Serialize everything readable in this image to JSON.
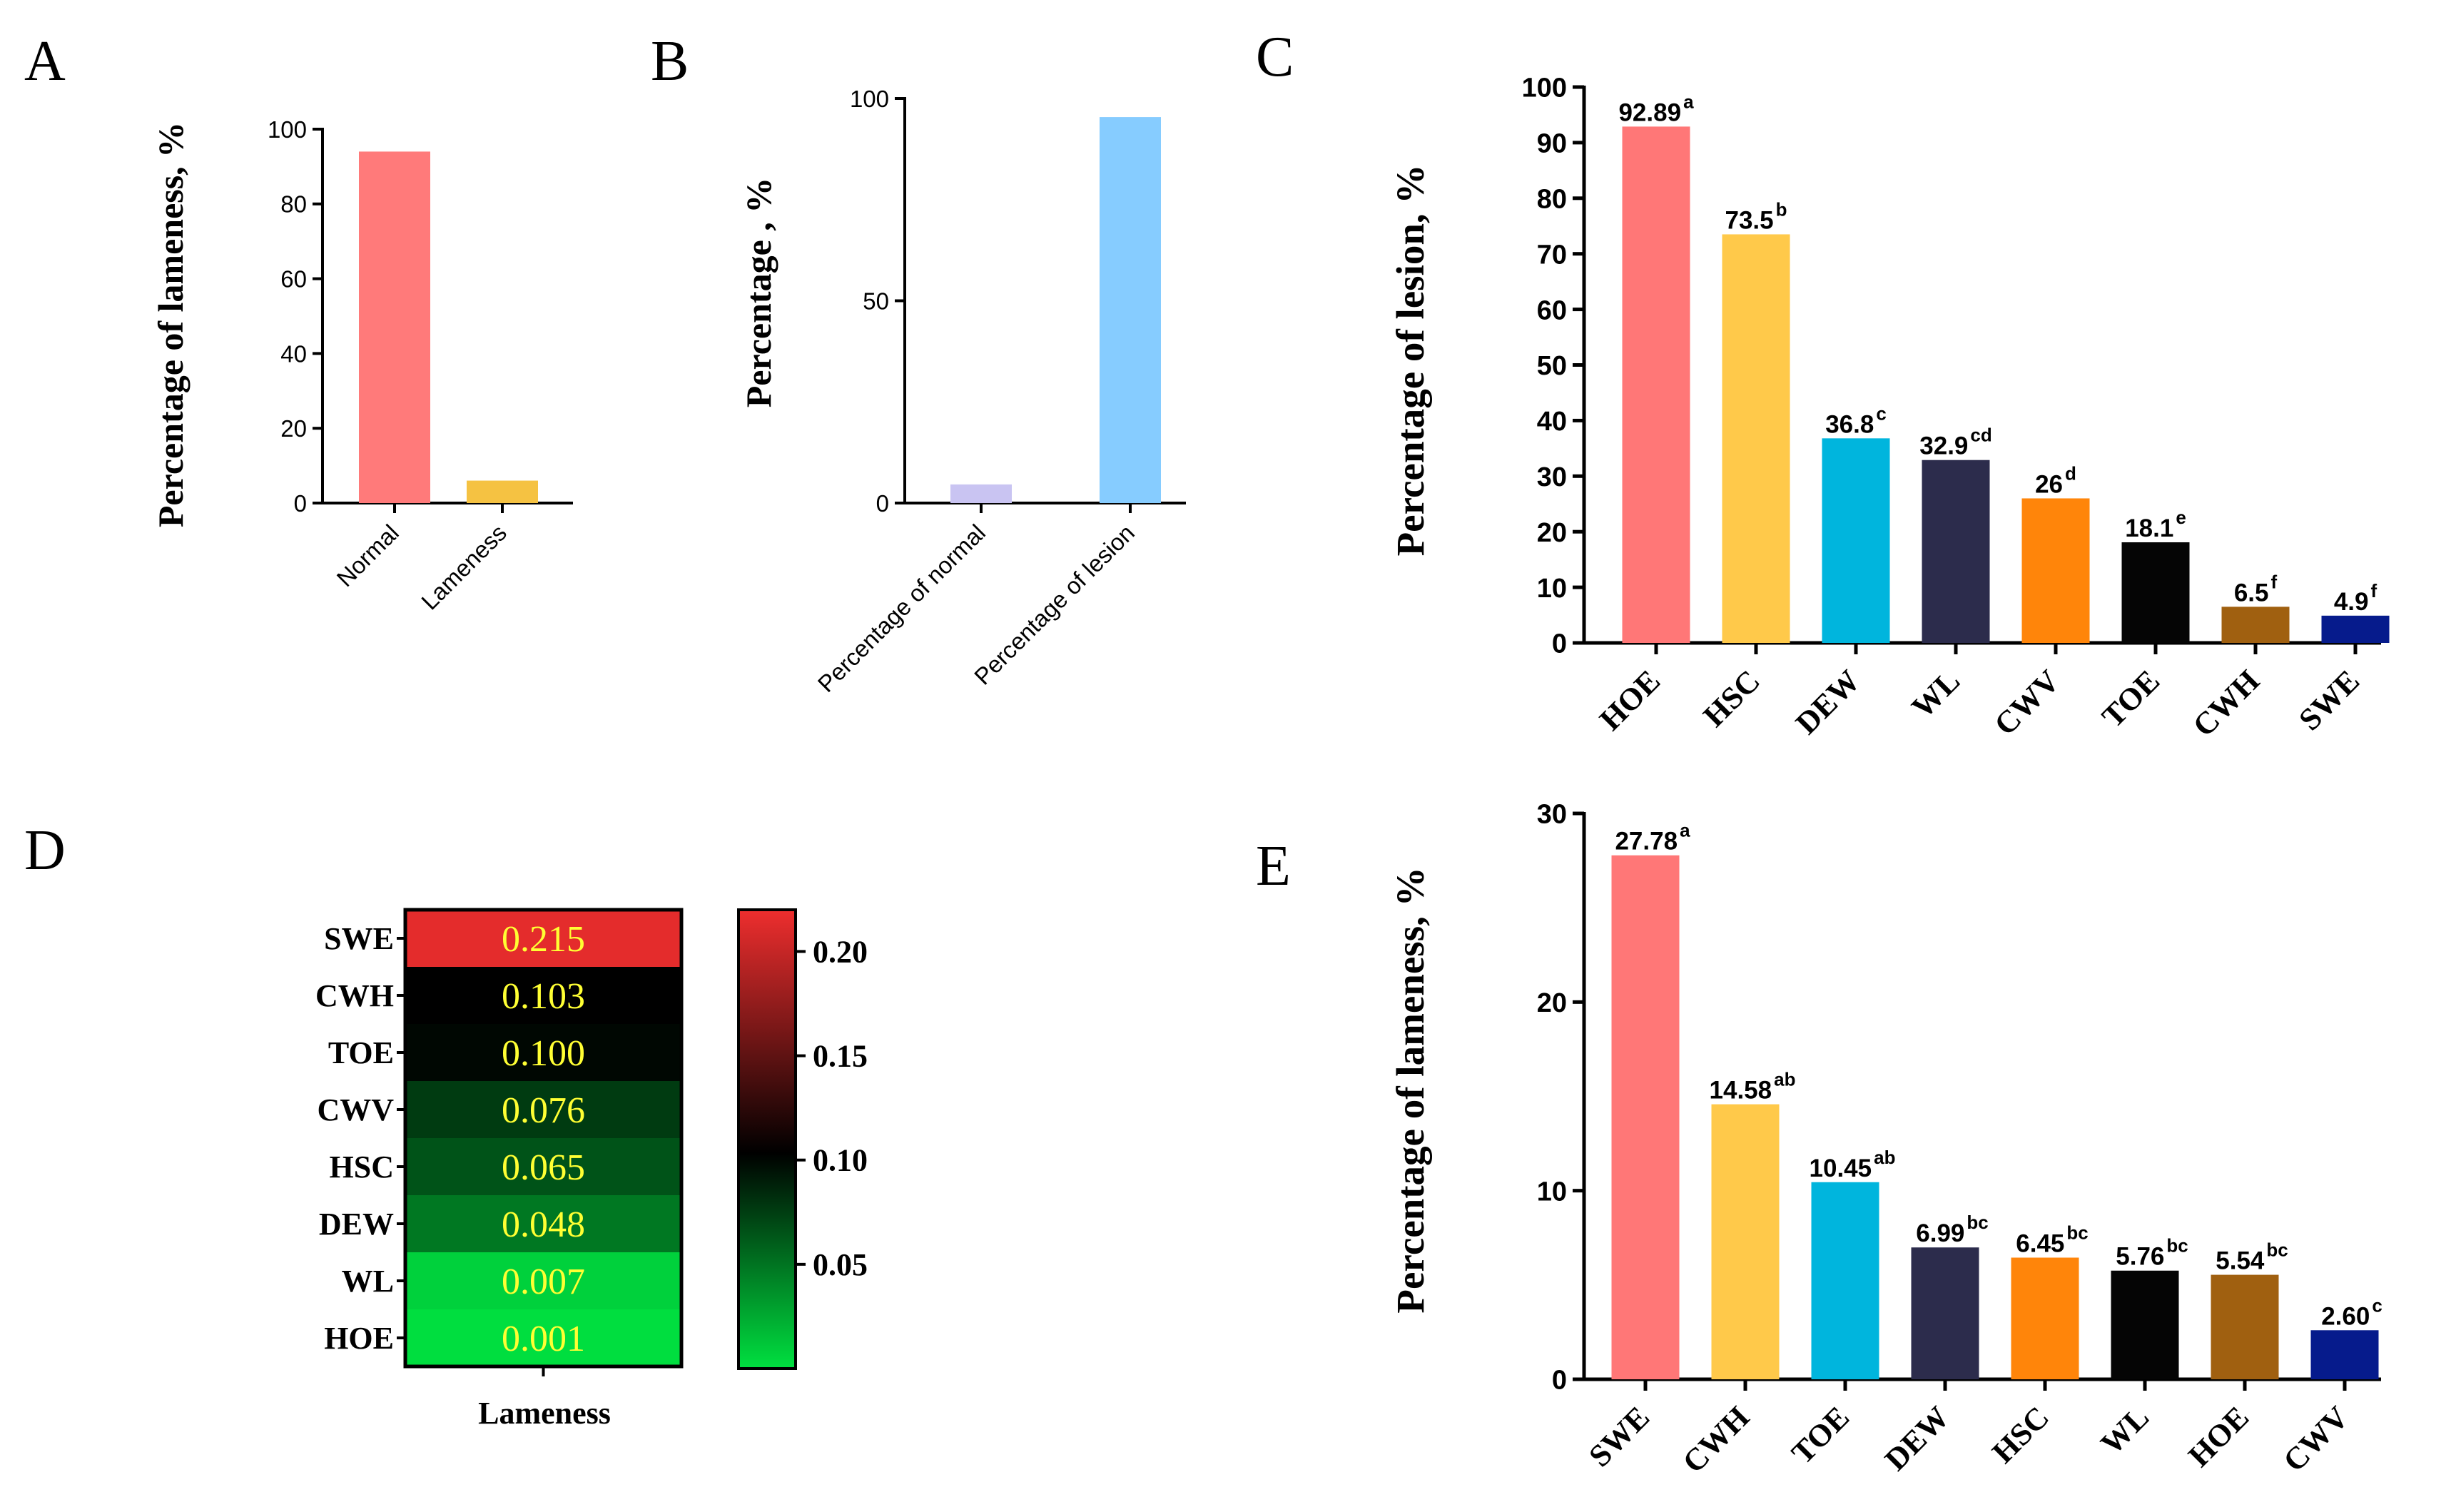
{
  "panels": {
    "A": "A",
    "B": "B",
    "C": "C",
    "D": "D",
    "E": "E"
  },
  "chart_data": [
    {
      "id": "A",
      "type": "bar",
      "title": "",
      "xlabel": "",
      "ylabel": "Percentage of lameness, %",
      "ylim": [
        0,
        100
      ],
      "yticks": [
        0,
        20,
        40,
        60,
        80,
        100
      ],
      "categories": [
        "Normal",
        "Lameness"
      ],
      "values": [
        94,
        6
      ],
      "colors": [
        "#ff7a7a",
        "#f5c242"
      ]
    },
    {
      "id": "B",
      "type": "bar",
      "title": "",
      "xlabel": "",
      "ylabel": "Percentage , %",
      "ylim": [
        0,
        100
      ],
      "yticks": [
        0,
        50,
        100
      ],
      "categories": [
        "Percentage of normal",
        "Percentage of lesion"
      ],
      "values": [
        4.6,
        95.4
      ],
      "colors": [
        "#c9c4f2",
        "#86ccff"
      ]
    },
    {
      "id": "C",
      "type": "bar",
      "title": "",
      "xlabel": "",
      "ylabel": "Percentage of lesion,  %",
      "ylim": [
        0,
        100
      ],
      "yticks": [
        0,
        10,
        20,
        30,
        40,
        50,
        60,
        70,
        80,
        90,
        100
      ],
      "categories": [
        "HOE",
        "HSC",
        "DEW",
        "WL",
        "CWV",
        "TOE",
        "CWH",
        "SWE"
      ],
      "values": [
        92.89,
        73.5,
        36.8,
        32.9,
        26,
        18.1,
        6.5,
        4.9
      ],
      "labels": [
        "92.89",
        "73.5",
        "36.8",
        "32.9",
        "26",
        "18.1",
        "6.5",
        "4.9"
      ],
      "superscripts": [
        "a",
        "b",
        "c",
        "cd",
        "d",
        "e",
        "f",
        "f"
      ],
      "colors": [
        "#ff7777",
        "#ffc94a",
        "#00b5dd",
        "#2c2c4c",
        "#ff850a",
        "#050505",
        "#a06010",
        "#061b8c"
      ]
    },
    {
      "id": "D",
      "type": "heatmap",
      "title": "",
      "xlabel": "Lameness",
      "ylabel": "",
      "rows": [
        "SWE",
        "CWH",
        "TOE",
        "CWV",
        "HSC",
        "DEW",
        "WL",
        "HOE"
      ],
      "values": [
        0.215,
        0.103,
        0.1,
        0.076,
        0.065,
        0.048,
        0.007,
        0.001
      ],
      "labels": [
        "0.215",
        "0.103",
        "0.100",
        "0.076",
        "0.065",
        "0.048",
        "0.007",
        "0.001"
      ],
      "colorbar": {
        "range": [
          0.0,
          0.22
        ],
        "ticks": [
          "0.20",
          "0.15",
          "0.10",
          "0.05"
        ],
        "tick_values": [
          0.2,
          0.15,
          0.1,
          0.05
        ],
        "colors": [
          "#00e040",
          "#000000",
          "#ee2e2e"
        ]
      }
    },
    {
      "id": "E",
      "type": "bar",
      "title": "",
      "xlabel": "",
      "ylabel": "Percentage of lameness,  %",
      "ylim": [
        0,
        30
      ],
      "yticks": [
        0,
        10,
        20,
        30
      ],
      "categories": [
        "SWE",
        "CWH",
        "TOE",
        "DEW",
        "HSC",
        "WL",
        "HOE",
        "CWV"
      ],
      "values": [
        27.78,
        14.58,
        10.45,
        6.99,
        6.45,
        5.76,
        5.54,
        2.6
      ],
      "labels": [
        "27.78",
        "14.58",
        "10.45",
        "6.99",
        "6.45",
        "5.76",
        "5.54",
        "2.60"
      ],
      "superscripts": [
        "a",
        "ab",
        "ab",
        "bc",
        "bc",
        "bc",
        "bc",
        "c"
      ],
      "colors": [
        "#ff7777",
        "#ffc94a",
        "#00b5dd",
        "#2c2c4c",
        "#ff850a",
        "#050505",
        "#a06010",
        "#061b8c"
      ]
    }
  ]
}
